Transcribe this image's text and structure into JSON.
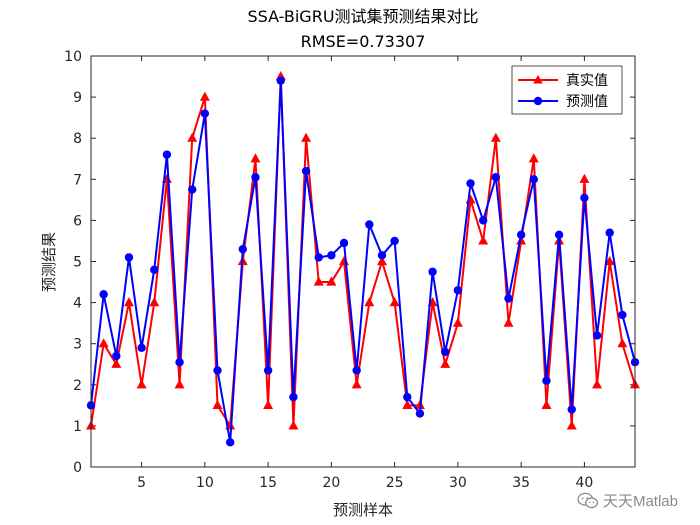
{
  "chart_data": {
    "type": "line",
    "title": "SSA-BiGRU测试集预测结果对比",
    "subtitle": "RMSE=0.73307",
    "xlabel": "预测样本",
    "ylabel": "预测结果",
    "xlim": [
      1,
      44
    ],
    "ylim": [
      0,
      10
    ],
    "xticks": [
      5,
      10,
      15,
      20,
      25,
      30,
      35,
      40
    ],
    "yticks": [
      0,
      1,
      2,
      3,
      4,
      5,
      6,
      7,
      8,
      9,
      10
    ],
    "legend_position": "top-right",
    "x": [
      1,
      2,
      3,
      4,
      5,
      6,
      7,
      8,
      9,
      10,
      11,
      12,
      13,
      14,
      15,
      16,
      17,
      18,
      19,
      20,
      21,
      22,
      23,
      24,
      25,
      26,
      27,
      28,
      29,
      30,
      31,
      32,
      33,
      34,
      35,
      36,
      37,
      38,
      39,
      40,
      41,
      42,
      43,
      44
    ],
    "series": [
      {
        "name": "真实值",
        "color": "#ff0000",
        "marker": "triangle",
        "values": [
          1,
          3,
          2.5,
          4,
          2,
          4,
          7,
          2,
          8,
          9,
          1.5,
          1,
          5,
          7.5,
          1.5,
          9.5,
          1,
          8,
          4.5,
          4.5,
          5,
          2,
          4,
          5,
          4,
          1.5,
          1.5,
          4,
          2.5,
          3.5,
          6.5,
          5.5,
          8,
          3.5,
          5.5,
          7.5,
          1.5,
          5.5,
          1,
          7,
          2,
          5,
          3,
          2
        ]
      },
      {
        "name": "预测值",
        "color": "#0000ff",
        "marker": "circle",
        "values": [
          1.5,
          4.2,
          2.7,
          5.1,
          2.9,
          4.8,
          7.6,
          2.55,
          6.75,
          8.6,
          2.35,
          0.6,
          5.3,
          7.05,
          2.35,
          9.4,
          1.7,
          7.2,
          5.1,
          5.15,
          5.45,
          2.35,
          5.9,
          5.15,
          5.5,
          1.7,
          1.3,
          4.75,
          2.8,
          4.3,
          6.9,
          6,
          7.05,
          4.1,
          5.65,
          7,
          2.1,
          5.65,
          1.4,
          6.55,
          3.2,
          5.7,
          3.7,
          2.55
        ]
      }
    ]
  },
  "watermark": {
    "text": "天天Matlab",
    "icon": "wechat-icon"
  }
}
